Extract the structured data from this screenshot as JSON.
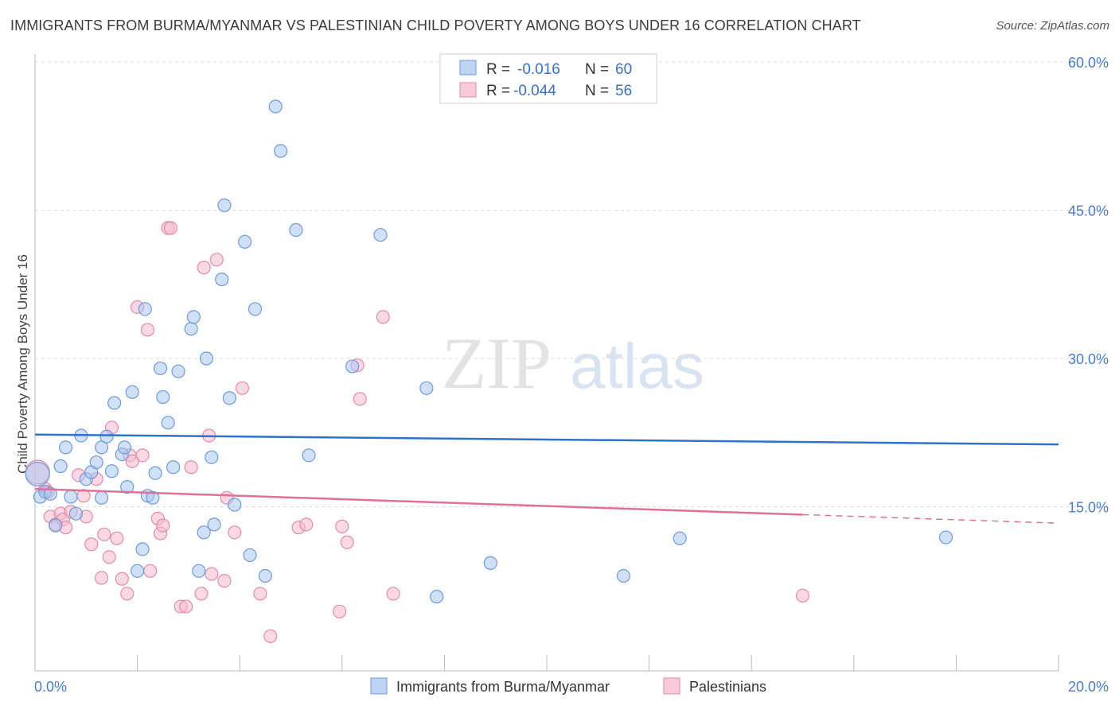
{
  "title": "IMMIGRANTS FROM BURMA/MYANMAR VS PALESTINIAN CHILD POVERTY AMONG BOYS UNDER 16 CORRELATION CHART",
  "source": "Source: ZipAtlas.com",
  "watermark": {
    "zip": "ZIP",
    "atlas": "atlas"
  },
  "colors": {
    "blue_fill": "#a9c6ee",
    "blue_stroke": "#6e9bd9",
    "blue_line": "#2f72c9",
    "pink_fill": "#f5b9cd",
    "pink_stroke": "#e48aa9",
    "pink_line": "#e0709a",
    "axis_text": "#4a7bc8",
    "grid": "#dcdcdc"
  },
  "legend": {
    "rows": [
      {
        "r_label": "R =",
        "r_value": "-0.016",
        "n_label": "N =",
        "n_value": "60",
        "series": "blue"
      },
      {
        "r_label": "R =",
        "r_value": "-0.044",
        "n_label": "N =",
        "n_value": "56",
        "series": "pink"
      }
    ]
  },
  "chart_data": {
    "type": "scatter",
    "title": "IMMIGRANTS FROM BURMA/MYANMAR VS PALESTINIAN CHILD POVERTY AMONG BOYS UNDER 16 CORRELATION CHART",
    "xlabel": "",
    "ylabel": "Child Poverty Among Boys Under 16",
    "xlim": [
      0,
      20
    ],
    "ylim": [
      0,
      60
    ],
    "x_tick_labels": [
      {
        "value": 0,
        "label": "0.0%"
      },
      {
        "value": 20,
        "label": "20.0%"
      }
    ],
    "y_tick_labels": [
      {
        "value": 15,
        "label": "15.0%"
      },
      {
        "value": 30,
        "label": "30.0%"
      },
      {
        "value": 45,
        "label": "45.0%"
      },
      {
        "value": 60,
        "label": "60.0%"
      }
    ],
    "grid": true,
    "legend_position": "top-center",
    "series": [
      {
        "name": "Immigrants from Burma/Myanmar",
        "color": "#a9c6ee",
        "trend": {
          "x": [
            0,
            20
          ],
          "y": [
            22.3,
            21.3
          ]
        },
        "points": [
          [
            0.05,
            18.3
          ],
          [
            0.1,
            16.0
          ],
          [
            0.2,
            16.5
          ],
          [
            0.3,
            16.3
          ],
          [
            0.4,
            13.1
          ],
          [
            0.5,
            19.1
          ],
          [
            0.6,
            21.0
          ],
          [
            0.7,
            16.0
          ],
          [
            0.8,
            14.3
          ],
          [
            0.9,
            22.2
          ],
          [
            1.0,
            17.8
          ],
          [
            1.1,
            18.5
          ],
          [
            1.2,
            19.5
          ],
          [
            1.3,
            15.9
          ],
          [
            1.3,
            21.0
          ],
          [
            1.4,
            22.1
          ],
          [
            1.5,
            18.6
          ],
          [
            1.55,
            25.5
          ],
          [
            1.7,
            20.3
          ],
          [
            1.75,
            21.0
          ],
          [
            1.8,
            17.0
          ],
          [
            1.9,
            26.6
          ],
          [
            2.0,
            8.5
          ],
          [
            2.1,
            10.7
          ],
          [
            2.15,
            35.0
          ],
          [
            2.2,
            16.1
          ],
          [
            2.3,
            15.9
          ],
          [
            2.35,
            18.4
          ],
          [
            2.45,
            29.0
          ],
          [
            2.5,
            26.1
          ],
          [
            2.6,
            23.5
          ],
          [
            2.7,
            19.0
          ],
          [
            2.8,
            28.7
          ],
          [
            3.05,
            33.0
          ],
          [
            3.1,
            34.2
          ],
          [
            3.2,
            8.5
          ],
          [
            3.3,
            12.4
          ],
          [
            3.35,
            30.0
          ],
          [
            3.45,
            20.0
          ],
          [
            3.5,
            13.2
          ],
          [
            3.65,
            38.0
          ],
          [
            3.7,
            45.5
          ],
          [
            3.8,
            26.0
          ],
          [
            3.9,
            15.2
          ],
          [
            4.1,
            41.8
          ],
          [
            4.2,
            10.1
          ],
          [
            4.3,
            35.0
          ],
          [
            4.5,
            8.0
          ],
          [
            4.7,
            55.5
          ],
          [
            4.8,
            51.0
          ],
          [
            5.1,
            43.0
          ],
          [
            5.35,
            20.2
          ],
          [
            6.2,
            29.2
          ],
          [
            6.75,
            42.5
          ],
          [
            7.65,
            27.0
          ],
          [
            7.85,
            5.9
          ],
          [
            8.9,
            9.3
          ],
          [
            11.5,
            8.0
          ],
          [
            12.6,
            11.8
          ],
          [
            17.8,
            11.9
          ]
        ]
      },
      {
        "name": "Palestinians",
        "color": "#f5b9cd",
        "trend": {
          "x": [
            0,
            15
          ],
          "y": [
            16.8,
            14.2
          ]
        },
        "points": [
          [
            0.05,
            18.5
          ],
          [
            0.2,
            16.8
          ],
          [
            0.3,
            14.0
          ],
          [
            0.4,
            13.2
          ],
          [
            0.5,
            14.3
          ],
          [
            0.55,
            13.7
          ],
          [
            0.6,
            12.9
          ],
          [
            0.7,
            14.5
          ],
          [
            0.85,
            18.2
          ],
          [
            0.95,
            16.1
          ],
          [
            1.0,
            14.0
          ],
          [
            1.1,
            11.2
          ],
          [
            1.2,
            17.8
          ],
          [
            1.3,
            7.8
          ],
          [
            1.35,
            12.2
          ],
          [
            1.45,
            9.9
          ],
          [
            1.5,
            23.0
          ],
          [
            1.6,
            11.8
          ],
          [
            1.7,
            7.7
          ],
          [
            1.8,
            6.2
          ],
          [
            1.85,
            20.2
          ],
          [
            1.9,
            19.6
          ],
          [
            2.0,
            35.2
          ],
          [
            2.1,
            20.2
          ],
          [
            2.2,
            32.9
          ],
          [
            2.25,
            8.5
          ],
          [
            2.4,
            13.8
          ],
          [
            2.45,
            12.3
          ],
          [
            2.5,
            13.1
          ],
          [
            2.6,
            43.2
          ],
          [
            2.65,
            43.2
          ],
          [
            2.85,
            4.9
          ],
          [
            2.95,
            4.9
          ],
          [
            3.05,
            19.0
          ],
          [
            3.25,
            6.2
          ],
          [
            3.3,
            39.2
          ],
          [
            3.4,
            22.2
          ],
          [
            3.45,
            8.2
          ],
          [
            3.55,
            40.0
          ],
          [
            3.7,
            7.5
          ],
          [
            3.75,
            15.9
          ],
          [
            3.9,
            12.4
          ],
          [
            4.05,
            27.0
          ],
          [
            4.4,
            6.2
          ],
          [
            4.6,
            1.9
          ],
          [
            5.15,
            12.9
          ],
          [
            5.3,
            13.2
          ],
          [
            5.95,
            4.4
          ],
          [
            6.0,
            13.0
          ],
          [
            6.1,
            11.4
          ],
          [
            6.3,
            29.3
          ],
          [
            6.35,
            25.9
          ],
          [
            6.8,
            34.2
          ],
          [
            7.0,
            6.2
          ],
          [
            15.0,
            6.0
          ],
          [
            0.25,
            16.5
          ]
        ]
      }
    ]
  },
  "bottom_legend": [
    {
      "label": "Immigrants from Burma/Myanmar",
      "series": "blue"
    },
    {
      "label": "Palestinians",
      "series": "pink"
    }
  ]
}
